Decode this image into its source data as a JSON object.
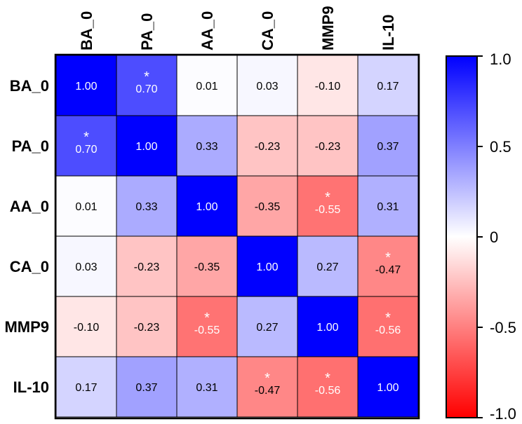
{
  "chart_data": {
    "type": "heatmap",
    "row_labels": [
      "BA_0",
      "PA_0",
      "AA_0",
      "CA_0",
      "MMP9",
      "IL-10"
    ],
    "col_labels": [
      "BA_0",
      "PA_0",
      "AA_0",
      "CA_0",
      "MMP9",
      "IL-10"
    ],
    "values": [
      [
        1.0,
        0.7,
        0.01,
        0.03,
        -0.1,
        0.17
      ],
      [
        0.7,
        1.0,
        0.33,
        -0.23,
        -0.23,
        0.37
      ],
      [
        0.01,
        0.33,
        1.0,
        -0.35,
        -0.55,
        0.31
      ],
      [
        0.03,
        -0.23,
        -0.35,
        1.0,
        0.27,
        -0.47
      ],
      [
        -0.1,
        -0.23,
        -0.55,
        0.27,
        1.0,
        -0.56
      ],
      [
        0.17,
        0.37,
        0.31,
        -0.47,
        -0.56,
        1.0
      ]
    ],
    "significant": [
      [
        false,
        true,
        false,
        false,
        false,
        false
      ],
      [
        true,
        false,
        false,
        false,
        false,
        false
      ],
      [
        false,
        false,
        false,
        false,
        true,
        false
      ],
      [
        false,
        false,
        false,
        false,
        false,
        true
      ],
      [
        false,
        false,
        true,
        false,
        false,
        true
      ],
      [
        false,
        false,
        false,
        true,
        true,
        false
      ]
    ],
    "significance_marker": "*",
    "colorbar": {
      "range": [
        -1.0,
        1.0
      ],
      "ticks": [
        1.0,
        0.5,
        0,
        -0.5,
        -1.0
      ],
      "tick_labels": [
        "1.0",
        "0.5",
        "0",
        "-0.5",
        "-1.0"
      ],
      "colors": {
        "low": "#ff0000",
        "mid": "#ffffff",
        "high": "#0000ff"
      }
    }
  }
}
